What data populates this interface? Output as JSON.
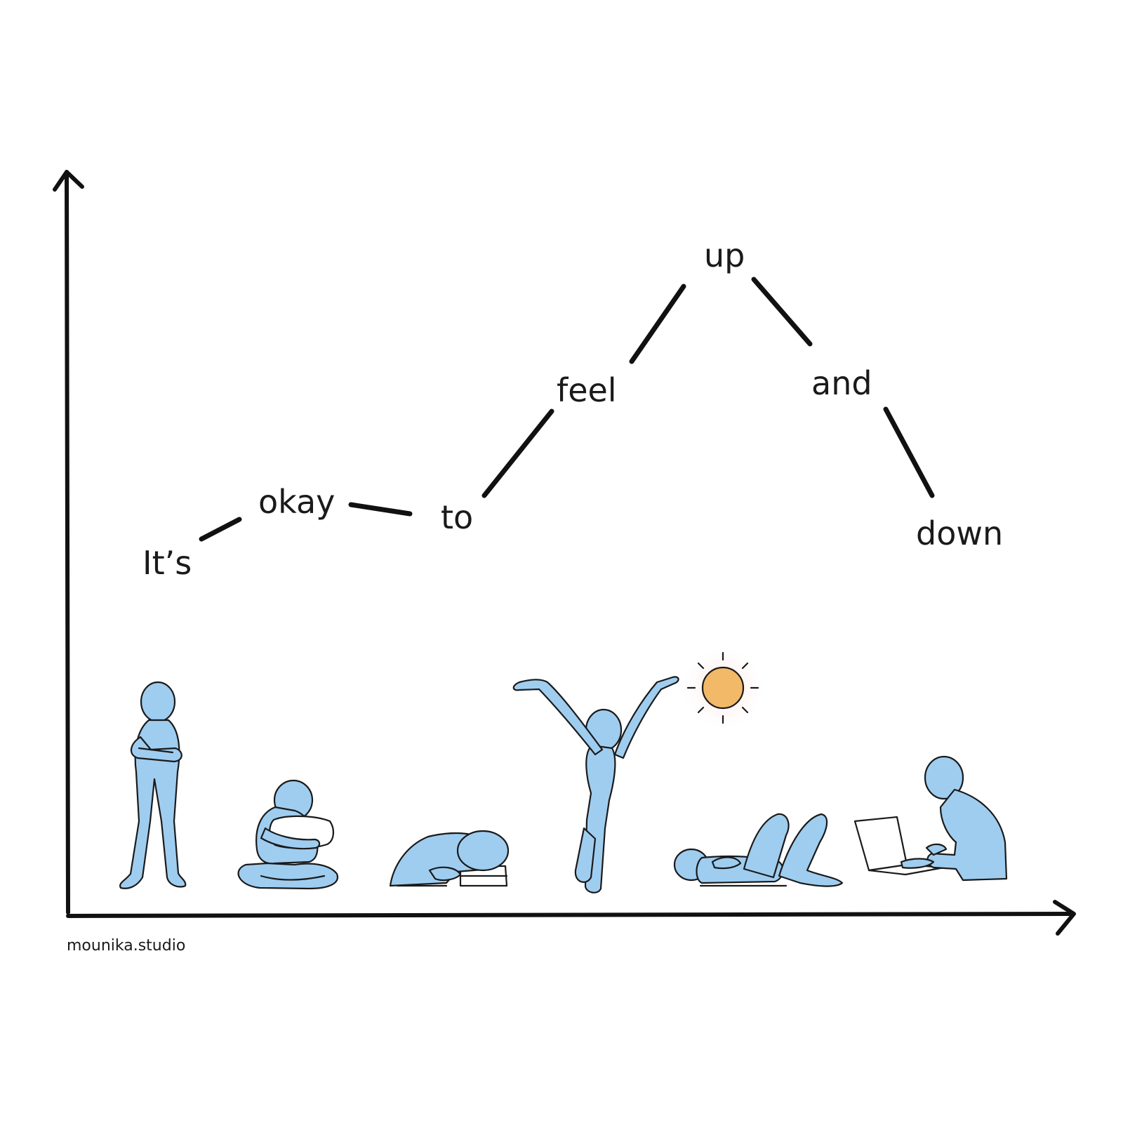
{
  "words": {
    "its": "It’s",
    "okay": "okay",
    "to": "to",
    "feel": "feel",
    "up": "up",
    "and": "and",
    "down": "down"
  },
  "credit": "mounika.studio",
  "colors": {
    "figure": "#9fcdf0",
    "sun": "#f2b968",
    "ink": "#1a1a1a"
  },
  "figures": [
    "standing-arms-crossed-figure-icon",
    "hugging-pillow-figure-icon",
    "head-on-books-figure-icon",
    "arms-raised-figure-icon",
    "lying-down-figure-icon",
    "laptop-figure-icon"
  ],
  "sun_icon": "sun-icon"
}
